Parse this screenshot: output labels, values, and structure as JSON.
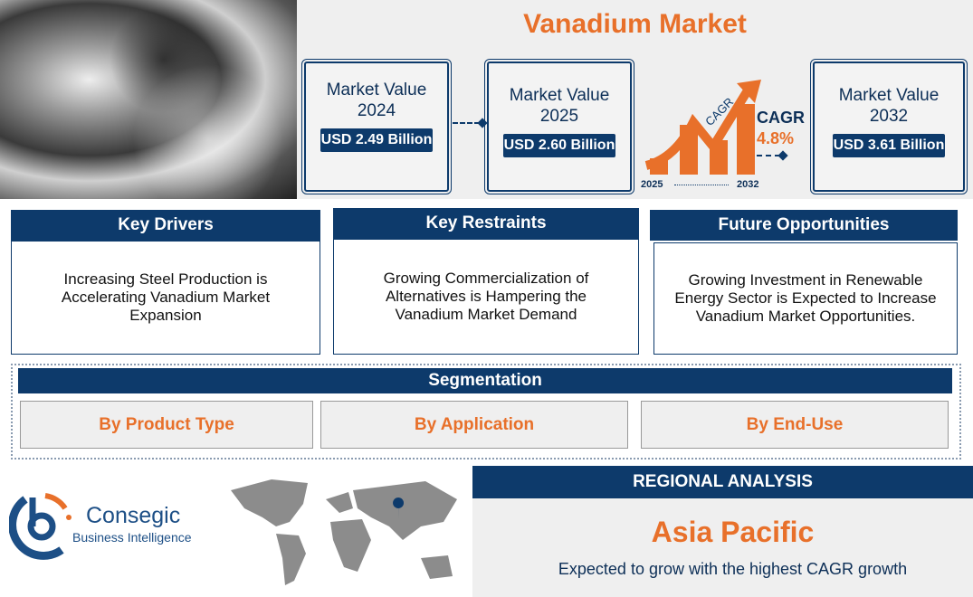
{
  "title": "Vanadium Market",
  "market_values": [
    {
      "label": "Market Value",
      "year": "2024",
      "value": "USD 2.49 Billion"
    },
    {
      "label": "Market Value",
      "year": "2025",
      "value": "USD 2.60 Billion"
    },
    {
      "label": "Market Value",
      "year": "2032",
      "value": "USD 3.61 Billion"
    }
  ],
  "cagr": {
    "arrow_label": "CAGR",
    "label": "CAGR",
    "value": "4.8%",
    "start": "2025",
    "end": "2032"
  },
  "panels": [
    {
      "title": "Key Drivers",
      "text": "Increasing Steel Production is Accelerating Vanadium Market Expansion"
    },
    {
      "title": "Key Restraints",
      "text": "Growing Commercialization of Alternatives is Hampering the Vanadium Market Demand"
    },
    {
      "title": "Future Opportunities",
      "text": "Growing Investment in Renewable Energy Sector is Expected to Increase Vanadium Market Opportunities."
    }
  ],
  "segmentation": {
    "title": "Segmentation",
    "items": [
      "By Product Type",
      "By Application",
      "By End-Use"
    ]
  },
  "logo": {
    "name": "Consegic",
    "tagline": "Business Intelligence"
  },
  "regional": {
    "title": "REGIONAL ANALYSIS",
    "region": "Asia Pacific",
    "text": "Expected to grow with the highest CAGR growth"
  },
  "colors": {
    "navy": "#0d3a6b",
    "orange": "#e8702a",
    "panel_bg": "#efefef"
  }
}
